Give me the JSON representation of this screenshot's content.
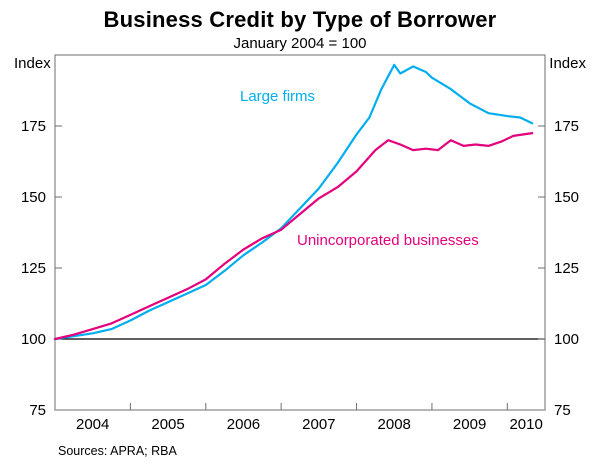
{
  "header": {
    "title": "Business Credit by Type of Borrower",
    "subtitle": "January 2004 = 100"
  },
  "axis": {
    "left_unit": "Index",
    "right_unit": "Index"
  },
  "footer": {
    "sources": "Sources: APRA; RBA"
  },
  "chart_data": {
    "type": "line",
    "title": "Business Credit by Type of Borrower",
    "subtitle": "January 2004 = 100",
    "xlabel": "",
    "ylabel": "Index",
    "ylim": [
      75,
      200
    ],
    "yticks": [
      75,
      100,
      125,
      150,
      175
    ],
    "baseline": 100,
    "x_range": [
      2004.0,
      2010.5
    ],
    "xtick_years": [
      2004,
      2005,
      2006,
      2007,
      2008,
      2009,
      2010
    ],
    "grid": "none",
    "legend_position": "inline-labels",
    "frame_color": "#6e6e6e",
    "baseline_color": "#000000",
    "series": [
      {
        "name": "Large firms",
        "color": "#00aeef",
        "x": [
          2004.0,
          2004.25,
          2004.5,
          2004.75,
          2005.0,
          2005.25,
          2005.5,
          2005.75,
          2006.0,
          2006.25,
          2006.5,
          2006.75,
          2007.0,
          2007.25,
          2007.5,
          2007.75,
          2008.0,
          2008.17,
          2008.33,
          2008.5,
          2008.58,
          2008.75,
          2008.92,
          2009.0,
          2009.25,
          2009.5,
          2009.75,
          2010.0,
          2010.17,
          2010.33
        ],
        "values": [
          100,
          101,
          102,
          103.5,
          106.5,
          110,
          113,
          116,
          119,
          124,
          129.5,
          134,
          139,
          146,
          153,
          162,
          172,
          178,
          188,
          196.5,
          193.5,
          196,
          194,
          192,
          188,
          183,
          179.5,
          178.5,
          178,
          176
        ]
      },
      {
        "name": "Unincorporated businesses",
        "color": "#e4007c",
        "x": [
          2004.0,
          2004.25,
          2004.5,
          2004.75,
          2005.0,
          2005.25,
          2005.5,
          2005.75,
          2006.0,
          2006.25,
          2006.5,
          2006.75,
          2007.0,
          2007.25,
          2007.5,
          2007.75,
          2008.0,
          2008.25,
          2008.42,
          2008.58,
          2008.75,
          2008.92,
          2009.08,
          2009.25,
          2009.42,
          2009.58,
          2009.75,
          2009.92,
          2010.08,
          2010.33
        ],
        "values": [
          100,
          101.5,
          103.5,
          105.5,
          108.5,
          111.5,
          114.5,
          117.5,
          121,
          126.5,
          131.5,
          135.5,
          138.5,
          144,
          149.5,
          153.5,
          159,
          166.5,
          170,
          168.5,
          166.5,
          167,
          166.5,
          170,
          168,
          168.5,
          168,
          169.5,
          171.5,
          172.5
        ]
      }
    ],
    "sources": "Sources: APRA; RBA"
  }
}
